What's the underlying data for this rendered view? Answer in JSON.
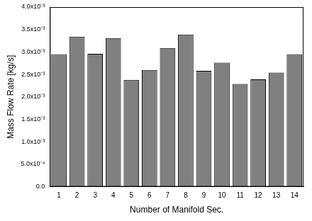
{
  "chart_data": {
    "type": "bar",
    "x_label": "Number of Manifold Sec.",
    "y_label": "Mass Flow Rate [kg/s]",
    "categories": [
      "1",
      "2",
      "3",
      "4",
      "5",
      "6",
      "7",
      "8",
      "9",
      "10",
      "11",
      "12",
      "13",
      "14"
    ],
    "values": [
      0.00295,
      0.00334,
      0.00296,
      0.00331,
      0.00238,
      0.0026,
      0.00309,
      0.00339,
      0.00258,
      0.00276,
      0.00229,
      0.00239,
      0.00254,
      0.00295
    ],
    "color": "#808080",
    "ylim": [
      0,
      0.004
    ],
    "yticks": [
      {
        "value": 0,
        "label": "0.0"
      },
      {
        "value": 0.0005,
        "label": "5.0x10⁻⁴"
      },
      {
        "value": 0.001,
        "label": "1.0x10⁻³"
      },
      {
        "value": 0.0015,
        "label": "1.5x10⁻³"
      },
      {
        "value": 0.002,
        "label": "2.0x10⁻³"
      },
      {
        "value": 0.0025,
        "label": "2.5x10⁻³"
      },
      {
        "value": 0.003,
        "label": "3.0x10⁻³"
      },
      {
        "value": 0.0035,
        "label": "3.5x10⁻³"
      },
      {
        "value": 0.004,
        "label": "4.0x10⁻³"
      }
    ],
    "grid": false
  }
}
